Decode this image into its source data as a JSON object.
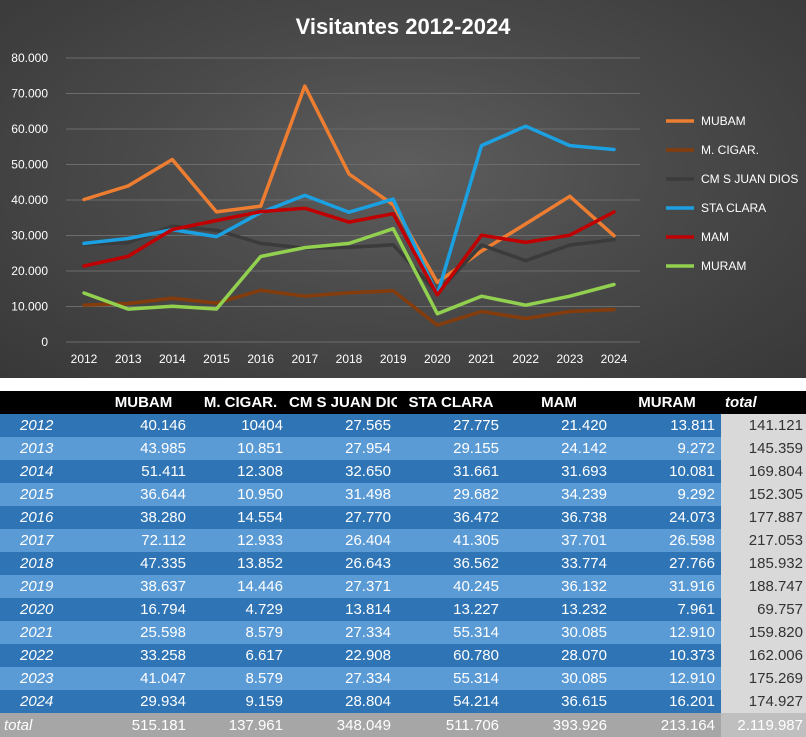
{
  "chart_data": {
    "type": "line",
    "title": "Visitantes 2012-2024",
    "x": [
      "2012",
      "2013",
      "2014",
      "2015",
      "2016",
      "2017",
      "2018",
      "2019",
      "2020",
      "2021",
      "2022",
      "2023",
      "2024"
    ],
    "ylim": [
      0,
      80000
    ],
    "yticks": [
      0,
      10000,
      20000,
      30000,
      40000,
      50000,
      60000,
      70000,
      80000
    ],
    "ytick_labels": [
      "0",
      "10.000",
      "20.000",
      "30.000",
      "40.000",
      "50.000",
      "60.000",
      "70.000",
      "80.000"
    ],
    "grid": true,
    "legend_position": "right",
    "series": [
      {
        "name": "MUBAM",
        "color": "#ed7d31",
        "values": [
          40146,
          43985,
          51411,
          36644,
          38280,
          72112,
          47335,
          38637,
          16794,
          25598,
          33258,
          41047,
          29934
        ]
      },
      {
        "name": "M. CIGAR.",
        "color": "#843c0c",
        "values": [
          10404,
          10851,
          12308,
          10950,
          14554,
          12933,
          13852,
          14446,
          4729,
          8579,
          6617,
          8579,
          9159
        ]
      },
      {
        "name": "CM S JUAN DIOS",
        "color": "#3b3b3b",
        "values": [
          27565,
          27954,
          32650,
          31498,
          27770,
          26404,
          26643,
          27371,
          13814,
          27334,
          22908,
          27334,
          28804
        ]
      },
      {
        "name": "STA CLARA",
        "color": "#1ba1e2",
        "values": [
          27775,
          29155,
          31661,
          29682,
          36472,
          41305,
          36562,
          40245,
          13227,
          55314,
          60780,
          55314,
          54214
        ]
      },
      {
        "name": "MAM",
        "color": "#c00000",
        "values": [
          21420,
          24142,
          31693,
          34239,
          36738,
          37701,
          33774,
          36132,
          13232,
          30085,
          28070,
          30085,
          36615
        ]
      },
      {
        "name": "MURAM",
        "color": "#92d050",
        "values": [
          13811,
          9272,
          10081,
          9292,
          24073,
          26598,
          27766,
          31916,
          7961,
          12910,
          10373,
          12910,
          16201
        ]
      }
    ]
  },
  "table": {
    "headers": [
      "",
      "MUBAM",
      "M. CIGAR.",
      "CM S JUAN DIOS",
      "STA CLARA",
      "MAM",
      "MURAM",
      "total"
    ],
    "rows": [
      [
        "2012",
        "40.146",
        "10404",
        "27.565",
        "27.775",
        "21.420",
        "13.811",
        "141.121"
      ],
      [
        "2013",
        "43.985",
        "10.851",
        "27.954",
        "29.155",
        "24.142",
        "9.272",
        "145.359"
      ],
      [
        "2014",
        "51.411",
        "12.308",
        "32.650",
        "31.661",
        "31.693",
        "10.081",
        "169.804"
      ],
      [
        "2015",
        "36.644",
        "10.950",
        "31.498",
        "29.682",
        "34.239",
        "9.292",
        "152.305"
      ],
      [
        "2016",
        "38.280",
        "14.554",
        "27.770",
        "36.472",
        "36.738",
        "24.073",
        "177.887"
      ],
      [
        "2017",
        "72.112",
        "12.933",
        "26.404",
        "41.305",
        "37.701",
        "26.598",
        "217.053"
      ],
      [
        "2018",
        "47.335",
        "13.852",
        "26.643",
        "36.562",
        "33.774",
        "27.766",
        "185.932"
      ],
      [
        "2019",
        "38.637",
        "14.446",
        "27.371",
        "40.245",
        "36.132",
        "31.916",
        "188.747"
      ],
      [
        "2020",
        "16.794",
        "4.729",
        "13.814",
        "13.227",
        "13.232",
        "7.961",
        "69.757"
      ],
      [
        "2021",
        "25.598",
        "8.579",
        "27.334",
        "55.314",
        "30.085",
        "12.910",
        "159.820"
      ],
      [
        "2022",
        "33.258",
        "6.617",
        "22.908",
        "60.780",
        "28.070",
        "10.373",
        "162.006"
      ],
      [
        "2023",
        "41.047",
        "8.579",
        "27.334",
        "55.314",
        "30.085",
        "12.910",
        "175.269"
      ],
      [
        "2024",
        "29.934",
        "9.159",
        "28.804",
        "54.214",
        "36.615",
        "16.201",
        "174.927"
      ]
    ],
    "total_row": [
      "total",
      "515.181",
      "137.961",
      "348.049",
      "511.706",
      "393.926",
      "213.164",
      "2.119.987"
    ]
  }
}
